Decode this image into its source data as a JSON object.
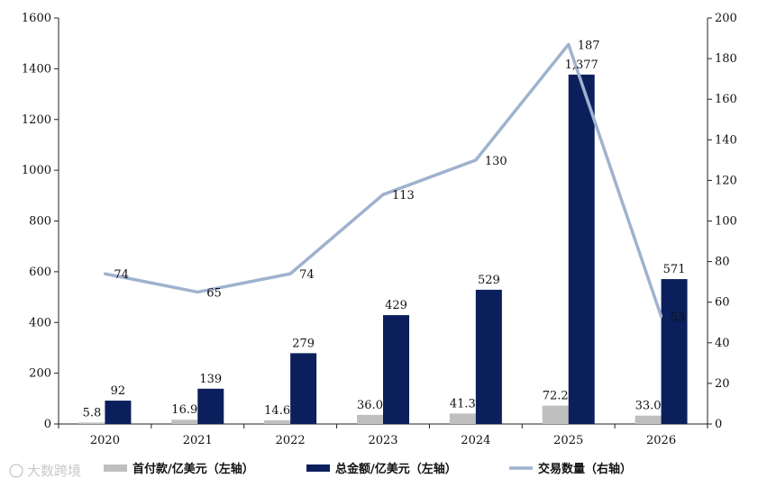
{
  "chart_data": {
    "type": "bar",
    "categories": [
      "2020",
      "2021",
      "2022",
      "2023",
      "2024",
      "2025",
      "2026"
    ],
    "series": [
      {
        "name": "首付款/亿美元（左轴）",
        "kind": "bar",
        "axis": "left",
        "color": "#bfbfbf",
        "values": [
          5.8,
          16.9,
          14.6,
          36.0,
          41.3,
          72.2,
          33.0
        ],
        "labels": [
          "5.8",
          "16.9",
          "14.6",
          "36.0",
          "41.3",
          "72.2",
          "33.0"
        ]
      },
      {
        "name": "总金额/亿美元（左轴）",
        "kind": "bar",
        "axis": "left",
        "color": "#0b1f5c",
        "values": [
          92,
          139,
          279,
          429,
          529,
          1377,
          571
        ],
        "labels": [
          "92",
          "139",
          "279",
          "429",
          "529",
          "1,377",
          "571"
        ]
      },
      {
        "name": "交易数量（右轴）",
        "kind": "line",
        "axis": "right",
        "color": "#9fb2cf",
        "values": [
          74,
          65,
          74,
          113,
          130,
          187,
          53
        ],
        "labels": [
          "74",
          "65",
          "74",
          "113",
          "130",
          "187",
          "53"
        ]
      }
    ],
    "ylim_left": [
      0,
      1600
    ],
    "yticks_left": [
      0,
      200,
      400,
      600,
      800,
      1000,
      1200,
      1400,
      1600
    ],
    "ylim_right": [
      0,
      200
    ],
    "yticks_right": [
      0,
      20,
      40,
      60,
      80,
      100,
      120,
      140,
      160,
      180,
      200
    ],
    "grid": false,
    "legend_position": "bottom"
  },
  "watermark": "大数跨境"
}
